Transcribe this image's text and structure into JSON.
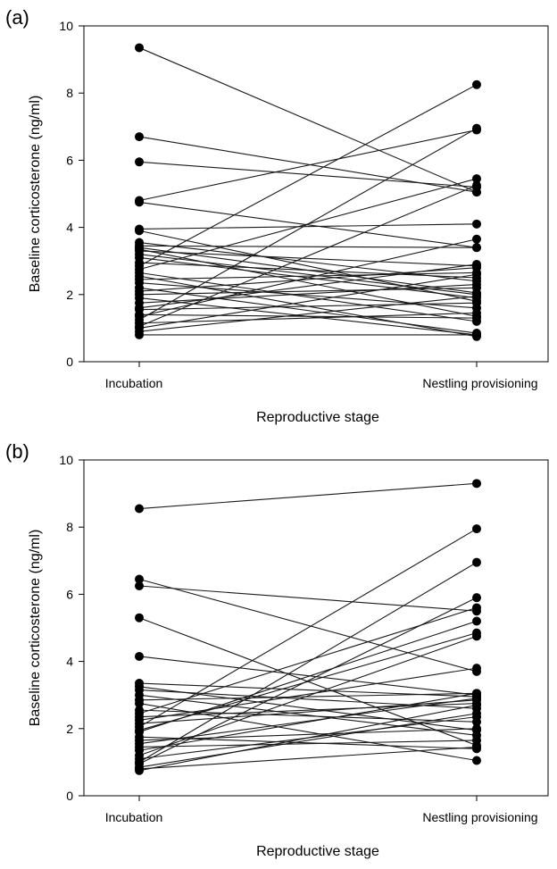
{
  "chart_data": [
    {
      "type": "line",
      "panel_label": "(a)",
      "xlabel": "Reproductive stage",
      "ylabel": "Baseline corticosterone (ng/ml)",
      "categories": [
        "Incubation",
        "Nestling provisioning"
      ],
      "ylim": [
        0,
        10
      ],
      "yticks": [
        0,
        2,
        4,
        6,
        8,
        10
      ],
      "grid": false,
      "series": [
        {
          "values": [
            9.35,
            5.05
          ]
        },
        {
          "values": [
            6.7,
            5.05
          ]
        },
        {
          "values": [
            5.95,
            5.2
          ]
        },
        {
          "values": [
            4.8,
            6.9
          ]
        },
        {
          "values": [
            4.75,
            3.4
          ]
        },
        {
          "values": [
            3.95,
            4.1
          ]
        },
        {
          "values": [
            3.9,
            1.8
          ]
        },
        {
          "values": [
            3.55,
            2.4
          ]
        },
        {
          "values": [
            3.45,
            3.4
          ]
        },
        {
          "values": [
            3.4,
            2.05
          ]
        },
        {
          "values": [
            3.35,
            1.35
          ]
        },
        {
          "values": [
            3.3,
            2.85
          ]
        },
        {
          "values": [
            3.2,
            2.0
          ]
        },
        {
          "values": [
            3.1,
            1.9
          ]
        },
        {
          "values": [
            2.95,
            2.5
          ]
        },
        {
          "values": [
            2.85,
            8.25
          ]
        },
        {
          "values": [
            2.75,
            5.45
          ]
        },
        {
          "values": [
            2.65,
            1.2
          ]
        },
        {
          "values": [
            2.55,
            0.75
          ]
        },
        {
          "values": [
            2.45,
            2.65
          ]
        },
        {
          "values": [
            2.35,
            1.6
          ]
        },
        {
          "values": [
            2.2,
            0.85
          ]
        },
        {
          "values": [
            2.1,
            2.8
          ]
        },
        {
          "values": [
            2.0,
            2.2
          ]
        },
        {
          "values": [
            1.9,
            0.8
          ]
        },
        {
          "values": [
            1.75,
            2.3
          ]
        },
        {
          "values": [
            1.6,
            2.9
          ]
        },
        {
          "values": [
            1.55,
            1.75
          ]
        },
        {
          "values": [
            1.4,
            1.3
          ]
        },
        {
          "values": [
            1.35,
            3.65
          ]
        },
        {
          "values": [
            1.25,
            6.95
          ]
        },
        {
          "values": [
            1.15,
            1.45
          ]
        },
        {
          "values": [
            1.05,
            5.25
          ]
        },
        {
          "values": [
            1.0,
            2.6
          ]
        },
        {
          "values": [
            0.9,
            1.95
          ]
        },
        {
          "values": [
            0.8,
            0.8
          ]
        }
      ]
    },
    {
      "type": "line",
      "panel_label": "(b)",
      "xlabel": "Reproductive stage",
      "ylabel": "Baseline corticosterone (ng/ml)",
      "categories": [
        "Incubation",
        "Nestling provisioning"
      ],
      "ylim": [
        0,
        10
      ],
      "yticks": [
        0,
        2,
        4,
        6,
        8,
        10
      ],
      "grid": false,
      "series": [
        {
          "values": [
            8.55,
            9.3
          ]
        },
        {
          "values": [
            6.45,
            3.7
          ]
        },
        {
          "values": [
            6.25,
            5.5
          ]
        },
        {
          "values": [
            5.3,
            1.5
          ]
        },
        {
          "values": [
            4.15,
            3.0
          ]
        },
        {
          "values": [
            3.35,
            2.95
          ]
        },
        {
          "values": [
            3.25,
            1.95
          ]
        },
        {
          "values": [
            3.15,
            2.6
          ]
        },
        {
          "values": [
            3.0,
            1.8
          ]
        },
        {
          "values": [
            2.85,
            3.05
          ]
        },
        {
          "values": [
            2.75,
            1.05
          ]
        },
        {
          "values": [
            2.55,
            2.2
          ]
        },
        {
          "values": [
            2.45,
            5.6
          ]
        },
        {
          "values": [
            2.35,
            2.75
          ]
        },
        {
          "values": [
            2.25,
            3.8
          ]
        },
        {
          "values": [
            2.15,
            2.85
          ]
        },
        {
          "values": [
            2.05,
            7.95
          ]
        },
        {
          "values": [
            1.95,
            4.85
          ]
        },
        {
          "values": [
            1.9,
            5.2
          ]
        },
        {
          "values": [
            1.75,
            1.4
          ]
        },
        {
          "values": [
            1.65,
            2.0
          ]
        },
        {
          "values": [
            1.55,
            2.9
          ]
        },
        {
          "values": [
            1.45,
            1.65
          ]
        },
        {
          "values": [
            1.35,
            3.05
          ]
        },
        {
          "values": [
            1.2,
            4.75
          ]
        },
        {
          "values": [
            1.1,
            2.35
          ]
        },
        {
          "values": [
            1.0,
            6.95
          ]
        },
        {
          "values": [
            0.95,
            5.9
          ]
        },
        {
          "values": [
            0.85,
            2.45
          ]
        },
        {
          "values": [
            0.8,
            1.45
          ]
        },
        {
          "values": [
            0.75,
            2.7
          ]
        }
      ]
    }
  ]
}
